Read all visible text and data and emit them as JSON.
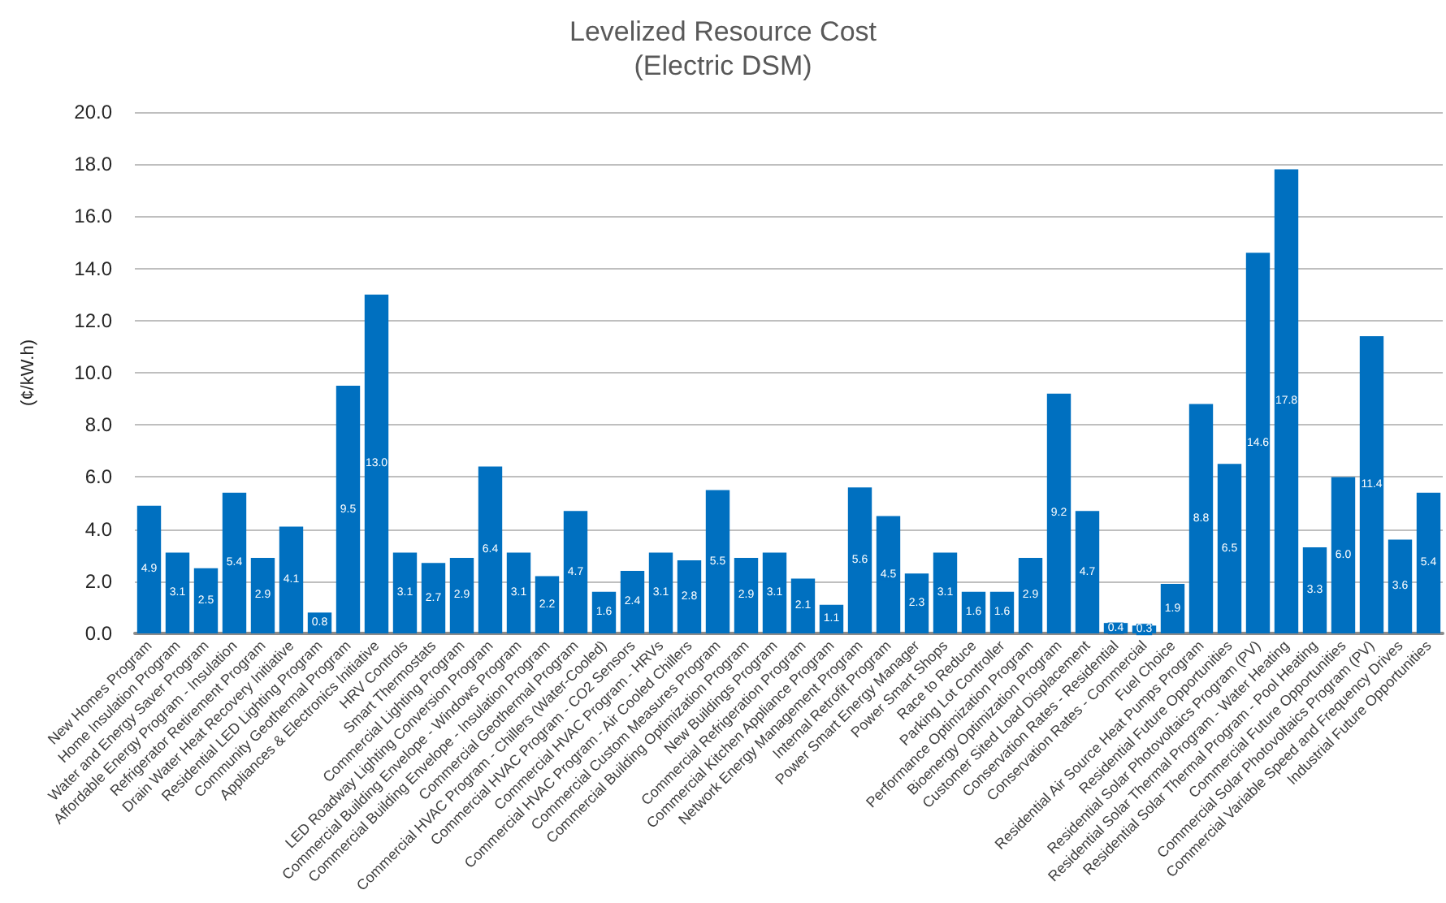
{
  "chart_data": {
    "type": "bar",
    "title": "Levelized Resource Cost\n(Electric DSM)",
    "ylabel": "(¢/kW.h)",
    "categories": [
      "New Homes Program",
      "Home Insulation Program",
      "Water and Energy Saver Program",
      "Affordable Energy Program - Insulation",
      "Refrigerator Retirement Program",
      "Drain Water Heat Recovery Initiative",
      "Residential LED Lighting Program",
      "Community Geothermal Program",
      "Appliances & Electronics Initiative",
      "HRV Controls",
      "Smart Thermostats",
      "Commercial Lighting Program",
      "LED Roadway Lighting Conversion Program",
      "Commercial Building Envelope - Windows Program",
      "Commercial Building Envelope - Insulation Program",
      "Commercial Geothermal Program",
      "Commercial HVAC Program - Chillers (Water-Cooled)",
      "Commercial HVAC Program - CO2 Sensors",
      "Commercial HVAC Program - HRVs",
      "Commercial HVAC Program - Air Cooled Chillers",
      "Commercial Custom Measures Program",
      "Commercial Building Optimization Program",
      "New Buildings Program",
      "Commercial Refrigeration Program",
      "Commercial Kitchen Appliance Program",
      "Network Energy Management Program",
      "Internal Retrofit Program",
      "Power Smart Energy Manager",
      "Power Smart Shops",
      "Race to Reduce",
      "Parking Lot Controller",
      "Performance Optimization Program",
      "Bioenergy Optimization Program",
      "Customer Sited Load Displacement",
      "Conservation Rates - Residential",
      "Conservation Rates - Commercial",
      "Fuel Choice",
      "Residential Air Source Heat Pumps Program",
      "Residential Future Opportunities",
      "Residential Solar Photovoltaics Program (PV)",
      "Residential Solar Thermal Program - Water Heating",
      "Residential Solar Thermal Program - Pool Heating",
      "Commercial Future Opportunities",
      "Commercial Solar Photovoltaics Program (PV)",
      "Commercial Variable Speed and Frequency Drives",
      "Industrial Future Opportunities"
    ],
    "values": [
      4.9,
      3.1,
      2.5,
      5.4,
      2.9,
      4.1,
      0.8,
      9.5,
      13.0,
      3.1,
      2.7,
      2.9,
      6.4,
      3.1,
      2.2,
      4.7,
      1.6,
      2.4,
      3.1,
      2.8,
      5.5,
      2.9,
      3.1,
      2.1,
      1.1,
      5.6,
      4.5,
      2.3,
      3.1,
      1.6,
      1.6,
      2.9,
      9.2,
      4.7,
      0.4,
      0.3,
      1.9,
      8.8,
      6.5,
      14.6,
      17.8,
      3.3,
      6.0,
      11.4,
      3.6,
      5.4
    ],
    "value_labels": [
      "4.9",
      "3.1",
      "2.5",
      "5.4",
      "2.9",
      "4.1",
      "0.8",
      "9.5",
      "13.0",
      "3.1",
      "2.7",
      "2.9",
      "6.4",
      "3.1",
      "2.2",
      "4.7",
      "1.6",
      "2.4",
      "3.1",
      "2.8",
      "5.5",
      "2.9",
      "3.1",
      "2.1",
      "1.1",
      "5.6",
      "4.5",
      "2.3",
      "3.1",
      "1.6",
      "1.6",
      "2.9",
      "9.2",
      "4.7",
      "0.4",
      "0.3",
      "1.9",
      "8.8",
      "6.5",
      "14.6",
      "17.8",
      "3.3",
      "6.0",
      "11.4",
      "3.6",
      "5.4"
    ],
    "color": "#0070c0",
    "ylim": [
      0,
      20
    ],
    "yticks": [
      {
        "value": 0,
        "label": "0.0"
      },
      {
        "value": 2,
        "label": "2.0"
      },
      {
        "value": 4,
        "label": "4.0"
      },
      {
        "value": 6,
        "label": "6.0"
      },
      {
        "value": 8,
        "label": "8.0"
      },
      {
        "value": 10,
        "label": "10.0"
      },
      {
        "value": 12,
        "label": "12.0"
      },
      {
        "value": 14,
        "label": "14.0"
      },
      {
        "value": 16,
        "label": "16.0"
      },
      {
        "value": 18,
        "label": "18.0"
      },
      {
        "value": 20,
        "label": "20.0"
      }
    ],
    "grid": "y"
  }
}
